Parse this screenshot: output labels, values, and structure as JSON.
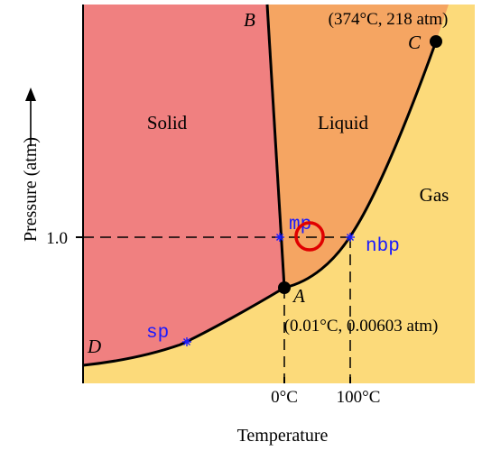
{
  "diagram": {
    "regions": {
      "solid": "Solid",
      "liquid": "Liquid",
      "gas": "Gas"
    },
    "points": {
      "B": "B",
      "C": "C",
      "A": "A",
      "D": "D"
    },
    "critical_point_label": "(374°C, 218 atm)",
    "triple_point_label": "(0.01°C, 0.00603 atm)",
    "y_tick_label": "1.0",
    "x_tick_labels": [
      "0°C",
      "100°C"
    ],
    "x_axis_label": "Temperature",
    "y_axis_label": "Pressure (atm)",
    "annotations": {
      "mp": "mp",
      "nbp": "nbp",
      "sp": "sp"
    },
    "colors": {
      "solid": "#F08080",
      "liquid": "#F5A562",
      "gas": "#FCDA7A",
      "line": "#000000",
      "annotation": "#1a1aff",
      "marker_circle": "#e00000"
    }
  }
}
